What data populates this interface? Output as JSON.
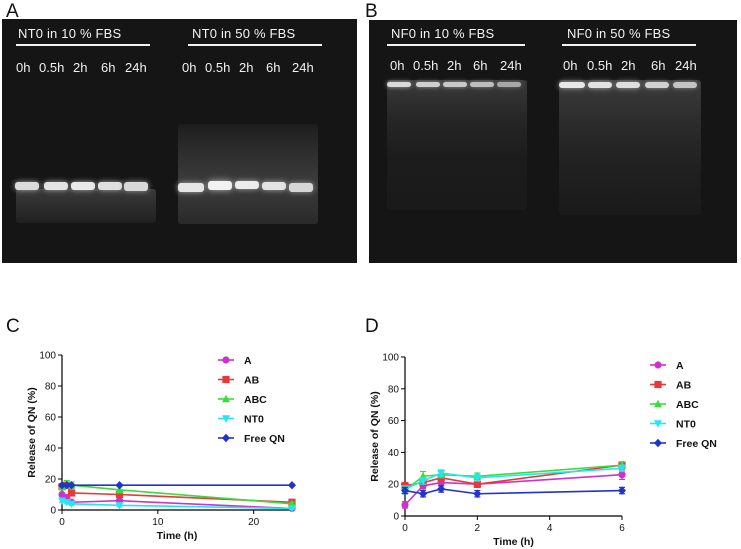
{
  "panels": {
    "A": {
      "label": "A",
      "group_titles": [
        "NT0 in 10 % FBS",
        "NT0 in 50 % FBS"
      ],
      "lane_labels": [
        "0h",
        "0.5h",
        "2h",
        "6h",
        "24h",
        "0h",
        "0.5h",
        "2h",
        "6h",
        "24h"
      ]
    },
    "B": {
      "label": "B",
      "group_titles": [
        "NF0 in 10 % FBS",
        "NF0 in 50 % FBS"
      ],
      "lane_labels": [
        "0h",
        "0.5h",
        "2h",
        "6h",
        "24h",
        "0h",
        "0.5h",
        "2h",
        "6h",
        "24h"
      ]
    },
    "C": {
      "label": "C"
    },
    "D": {
      "label": "D"
    }
  },
  "colors": {
    "A": "#cc33cc",
    "AB": "#e8383a",
    "ABC": "#3adc3a",
    "NT0": "#22e8ee",
    "Free QN": "#2233cc"
  },
  "chart_data": [
    {
      "panel": "C",
      "type": "line",
      "xlabel": "Time (h)",
      "ylabel": "Release of QN (%)",
      "xlim": [
        0,
        24
      ],
      "ylim": [
        0,
        100
      ],
      "xticks": [
        "0",
        "10",
        "20"
      ],
      "yticks": [
        "0",
        "20",
        "40",
        "60",
        "80",
        "100"
      ],
      "legend_position": "right",
      "x": [
        0,
        0.5,
        1,
        6,
        24
      ],
      "series": [
        {
          "name": "A",
          "marker": "circle",
          "values": [
            10,
            8,
            5,
            6,
            1
          ],
          "errors": [
            1,
            1,
            1,
            1,
            0.5
          ]
        },
        {
          "name": "AB",
          "marker": "square",
          "values": [
            15,
            16,
            11,
            10,
            5
          ],
          "errors": [
            1,
            1,
            1,
            1,
            1
          ]
        },
        {
          "name": "ABC",
          "marker": "triangle-up",
          "values": [
            15,
            17,
            16,
            13,
            4
          ],
          "errors": [
            2,
            2,
            2,
            2,
            1
          ]
        },
        {
          "name": "NT0",
          "marker": "triangle-down",
          "values": [
            6,
            5,
            4,
            3,
            1
          ],
          "errors": [
            1,
            1,
            1,
            1,
            0.5
          ]
        },
        {
          "name": "Free QN",
          "marker": "diamond",
          "values": [
            16,
            16,
            16,
            16,
            16
          ],
          "errors": [
            0.5,
            0.5,
            0.5,
            0.5,
            0.5
          ]
        }
      ]
    },
    {
      "panel": "D",
      "type": "line",
      "xlabel": "Time (h)",
      "ylabel": "Release of QN (%)",
      "xlim": [
        0,
        6
      ],
      "ylim": [
        0,
        100
      ],
      "xticks": [
        "0",
        "2",
        "4",
        "6"
      ],
      "yticks": [
        "0",
        "20",
        "40",
        "60",
        "80",
        "100"
      ],
      "legend_position": "right",
      "x": [
        0,
        0.5,
        1,
        2,
        6
      ],
      "series": [
        {
          "name": "A",
          "marker": "circle",
          "values": [
            7,
            19,
            21,
            20,
            26
          ],
          "errors": [
            2,
            2,
            2,
            2,
            3
          ]
        },
        {
          "name": "AB",
          "marker": "square",
          "values": [
            19,
            21,
            24,
            20,
            32
          ],
          "errors": [
            2,
            2,
            2,
            2,
            2
          ]
        },
        {
          "name": "ABC",
          "marker": "triangle-up",
          "values": [
            16,
            25,
            26,
            25,
            32
          ],
          "errors": [
            2,
            3,
            2,
            2,
            2
          ]
        },
        {
          "name": "NT0",
          "marker": "triangle-down",
          "values": [
            17,
            22,
            27,
            24,
            30
          ],
          "errors": [
            2,
            2,
            2,
            2,
            2
          ]
        },
        {
          "name": "Free QN",
          "marker": "diamond",
          "values": [
            16,
            14,
            17,
            14,
            16
          ],
          "errors": [
            2,
            2,
            2,
            2,
            2
          ]
        }
      ]
    }
  ]
}
